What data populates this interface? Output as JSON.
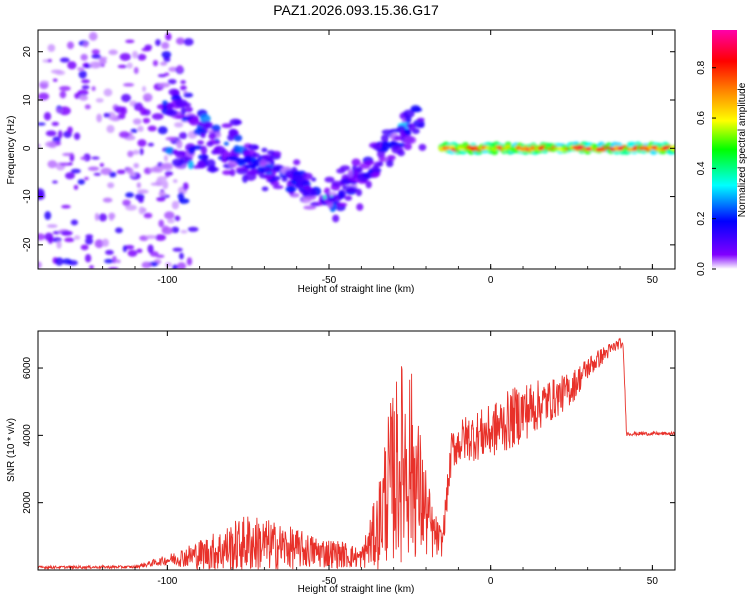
{
  "figure_title": "PAZ1.2026.093.15.36.G17",
  "chart_data": [
    {
      "type": "heatmap",
      "title": "PAZ1.2026.093.15.36.G17",
      "xlabel": "Height of straight line (km)",
      "ylabel": "Frequency (Hz)",
      "xlim": [
        -140,
        57
      ],
      "ylim": [
        -25,
        24.5
      ],
      "x_ticks": [
        "-100",
        "-50",
        "0",
        "50"
      ],
      "x_tick_values": [
        -100,
        -50,
        0,
        50
      ],
      "y_ticks": [
        "-20",
        "-10",
        "0",
        "10",
        "20"
      ],
      "y_tick_values": [
        -20,
        -10,
        0,
        10,
        20
      ],
      "colorbar": {
        "label": "Normalized spectral amplitude",
        "range": [
          0,
          0.95
        ],
        "ticks": [
          "0.0",
          "0.2",
          "0.4",
          "0.6",
          "0.8"
        ],
        "tick_values": [
          0,
          0.2,
          0.4,
          0.6,
          0.8
        ],
        "colormap": [
          "#ffffff",
          "#8000ff",
          "#0000ff",
          "#00ffff",
          "#00ff00",
          "#ffff00",
          "#ff8000",
          "#ff0000",
          "#ff00aa"
        ]
      },
      "features": [
        {
          "name": "scattered-noise",
          "x_range": [
            -140,
            -100
          ],
          "freq_range": [
            -25,
            24
          ],
          "amplitude": 0.1
        },
        {
          "name": "descending-band-1",
          "x_start": -100,
          "x_end": -50,
          "freq_start": 10,
          "freq_end": -12,
          "amplitude": 0.25
        },
        {
          "name": "descending-band-2",
          "x_start": -100,
          "x_end": -55,
          "freq_start": 0,
          "freq_end": -8,
          "amplitude": 0.2
        },
        {
          "name": "ascending-band",
          "x_start": -50,
          "x_end": -22,
          "freq_start": -12,
          "freq_end": 6,
          "amplitude": 0.2
        },
        {
          "name": "carrier-line",
          "x_start": -15,
          "x_end": 57,
          "freq": 0,
          "amplitude": 0.85
        }
      ]
    },
    {
      "type": "line",
      "xlabel": "Height of straight line (km)",
      "ylabel": "SNR (10 * v/v)",
      "xlim": [
        -140,
        57
      ],
      "ylim": [
        0,
        7100
      ],
      "x_ticks": [
        "-100",
        "-50",
        "0",
        "50"
      ],
      "x_tick_values": [
        -100,
        -50,
        0,
        50
      ],
      "y_ticks": [
        "2000",
        "4000",
        "6000"
      ],
      "y_tick_values": [
        2000,
        4000,
        6000
      ],
      "color": "#e8312a",
      "series": [
        {
          "name": "SNR",
          "x": [
            -140,
            -110,
            -100,
            -85,
            -75,
            -65,
            -55,
            -45,
            -40,
            -35,
            -32,
            -28,
            -25,
            -22,
            -18,
            -15,
            -12,
            -8,
            0,
            5,
            10,
            20,
            25,
            30,
            35,
            40,
            41,
            42,
            50,
            57
          ],
          "mid": [
            80,
            90,
            300,
            550,
            800,
            700,
            550,
            450,
            350,
            1200,
            2400,
            3200,
            3300,
            2300,
            1100,
            800,
            3600,
            3900,
            4100,
            4400,
            4700,
            5100,
            5400,
            6000,
            6400,
            6750,
            6600,
            4050,
            4050,
            4050
          ],
          "amp": [
            40,
            40,
            150,
            600,
            900,
            700,
            500,
            400,
            300,
            1200,
            2200,
            3000,
            3000,
            2000,
            800,
            400,
            600,
            700,
            800,
            900,
            900,
            600,
            500,
            350,
            250,
            150,
            100,
            60,
            50,
            50
          ]
        }
      ]
    }
  ]
}
